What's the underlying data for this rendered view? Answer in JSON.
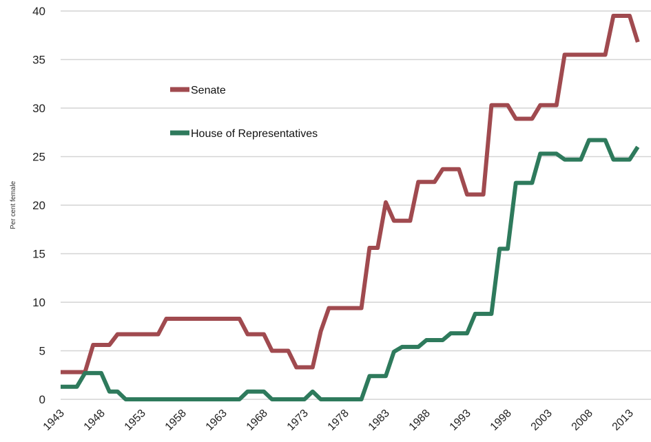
{
  "chart_data": {
    "type": "line",
    "title": "",
    "xlabel": "",
    "ylabel": "Per cent female",
    "ylim": [
      0,
      40
    ],
    "xlim": [
      1943,
      2014
    ],
    "yticks": [
      "0",
      "5",
      "10",
      "15",
      "20",
      "25",
      "30",
      "35",
      "40"
    ],
    "xticks": [
      "1943",
      "1948",
      "1953",
      "1958",
      "1963",
      "1968",
      "1973",
      "1978",
      "1983",
      "1988",
      "1993",
      "1998",
      "2003",
      "2008",
      "2013"
    ],
    "grid": "horizontal",
    "legend_position": "upper-left",
    "series": [
      {
        "name": "Senate",
        "color": "#a04a4f",
        "points": [
          [
            1943,
            2.8
          ],
          [
            1946,
            2.8
          ],
          [
            1947,
            5.6
          ],
          [
            1949,
            5.6
          ],
          [
            1950,
            6.7
          ],
          [
            1955,
            6.7
          ],
          [
            1956,
            8.3
          ],
          [
            1965,
            8.3
          ],
          [
            1966,
            6.7
          ],
          [
            1968,
            6.7
          ],
          [
            1969,
            5.0
          ],
          [
            1971,
            5.0
          ],
          [
            1972,
            3.3
          ],
          [
            1974,
            3.3
          ],
          [
            1975,
            7.0
          ],
          [
            1976,
            9.4
          ],
          [
            1980,
            9.4
          ],
          [
            1981,
            15.6
          ],
          [
            1982,
            15.6
          ],
          [
            1983,
            20.3
          ],
          [
            1984,
            18.4
          ],
          [
            1986,
            18.4
          ],
          [
            1987,
            22.4
          ],
          [
            1989,
            22.4
          ],
          [
            1990,
            23.7
          ],
          [
            1992,
            23.7
          ],
          [
            1993,
            21.1
          ],
          [
            1995,
            21.1
          ],
          [
            1996,
            30.3
          ],
          [
            1998,
            30.3
          ],
          [
            1999,
            28.9
          ],
          [
            2001,
            28.9
          ],
          [
            2002,
            30.3
          ],
          [
            2004,
            30.3
          ],
          [
            2005,
            35.5
          ],
          [
            2010,
            35.5
          ],
          [
            2011,
            39.5
          ],
          [
            2013,
            39.5
          ],
          [
            2014,
            36.8
          ]
        ]
      },
      {
        "name": "House of Representatives",
        "color": "#2e7a5c",
        "points": [
          [
            1943,
            1.3
          ],
          [
            1945,
            1.3
          ],
          [
            1946,
            2.7
          ],
          [
            1948,
            2.7
          ],
          [
            1949,
            0.8
          ],
          [
            1950,
            0.8
          ],
          [
            1951,
            0.0
          ],
          [
            1965,
            0.0
          ],
          [
            1966,
            0.8
          ],
          [
            1968,
            0.8
          ],
          [
            1969,
            0.0
          ],
          [
            1973,
            0.0
          ],
          [
            1974,
            0.8
          ],
          [
            1975,
            0.0
          ],
          [
            1980,
            0.0
          ],
          [
            1981,
            2.4
          ],
          [
            1983,
            2.4
          ],
          [
            1984,
            4.9
          ],
          [
            1985,
            5.4
          ],
          [
            1987,
            5.4
          ],
          [
            1988,
            6.1
          ],
          [
            1990,
            6.1
          ],
          [
            1991,
            6.8
          ],
          [
            1993,
            6.8
          ],
          [
            1994,
            8.8
          ],
          [
            1996,
            8.8
          ],
          [
            1997,
            15.5
          ],
          [
            1998,
            15.5
          ],
          [
            1999,
            22.3
          ],
          [
            2001,
            22.3
          ],
          [
            2002,
            25.3
          ],
          [
            2004,
            25.3
          ],
          [
            2005,
            24.7
          ],
          [
            2007,
            24.7
          ],
          [
            2008,
            26.7
          ],
          [
            2010,
            26.7
          ],
          [
            2011,
            24.7
          ],
          [
            2013,
            24.7
          ],
          [
            2014,
            26.0
          ]
        ]
      }
    ]
  }
}
